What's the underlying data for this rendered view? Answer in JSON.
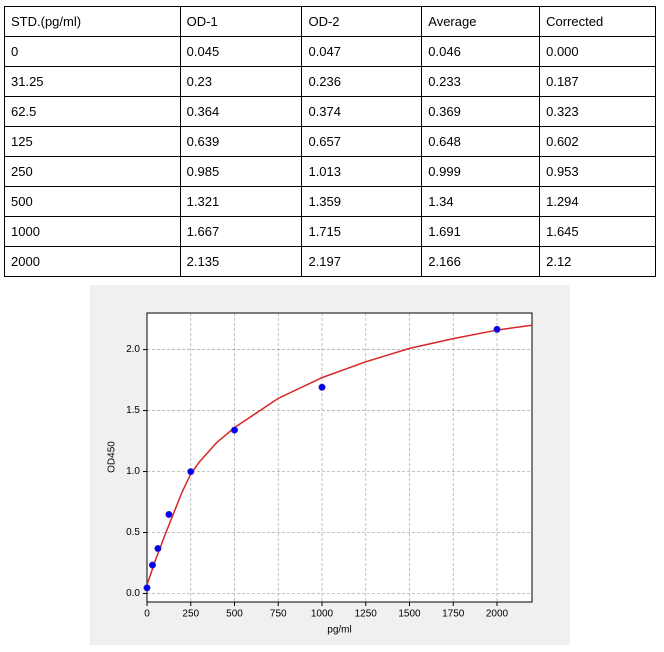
{
  "table": {
    "header": [
      "STD.(pg/ml)",
      "OD-1",
      "OD-2",
      "Average",
      "Corrected"
    ],
    "rows": [
      [
        "0",
        "0.045",
        "0.047",
        "0.046",
        "0.000"
      ],
      [
        "31.25",
        "0.23",
        "0.236",
        "0.233",
        "0.187"
      ],
      [
        "62.5",
        "0.364",
        "0.374",
        "0.369",
        "0.323"
      ],
      [
        "125",
        "0.639",
        "0.657",
        "0.648",
        "0.602"
      ],
      [
        "250",
        "0.985",
        "1.013",
        "0.999",
        "0.953"
      ],
      [
        "500",
        "1.321",
        "1.359",
        "1.34",
        "1.294"
      ],
      [
        "1000",
        "1.667",
        "1.715",
        "1.691",
        "1.645"
      ],
      [
        "2000",
        "2.135",
        "2.197",
        "2.166",
        "2.12"
      ]
    ]
  },
  "chart_data": {
    "type": "scatter",
    "xlabel": "pg/ml",
    "ylabel": "OD450",
    "series": [
      {
        "color": "#0000ff",
        "x": [
          0,
          31.25,
          62.5,
          125,
          250,
          500,
          1000,
          2000
        ],
        "values": [
          0.046,
          0.233,
          0.369,
          0.648,
          0.999,
          1.34,
          1.691,
          2.166
        ]
      },
      {
        "type": "line",
        "color": "#d62728",
        "x": [
          0,
          50,
          100,
          150,
          200,
          250,
          300,
          400,
          500,
          750,
          1000,
          1250,
          1500,
          1750,
          2000,
          2200
        ],
        "values": [
          0.07,
          0.28,
          0.47,
          0.65,
          0.83,
          0.98,
          1.08,
          1.24,
          1.36,
          1.6,
          1.77,
          1.9,
          2.01,
          2.09,
          2.16,
          2.2
        ]
      }
    ],
    "xlim": [
      0,
      2200
    ],
    "ylim": [
      -0.07,
      2.3
    ],
    "xticks": [
      0,
      250,
      500,
      750,
      1000,
      1250,
      1500,
      1750,
      2000
    ],
    "yticks": [
      {
        "value": 0,
        "label": "0.0"
      },
      0.5,
      {
        "value": 1,
        "label": "1.0"
      },
      1.5,
      {
        "value": 2,
        "label": "2.0"
      }
    ],
    "grid": true
  }
}
